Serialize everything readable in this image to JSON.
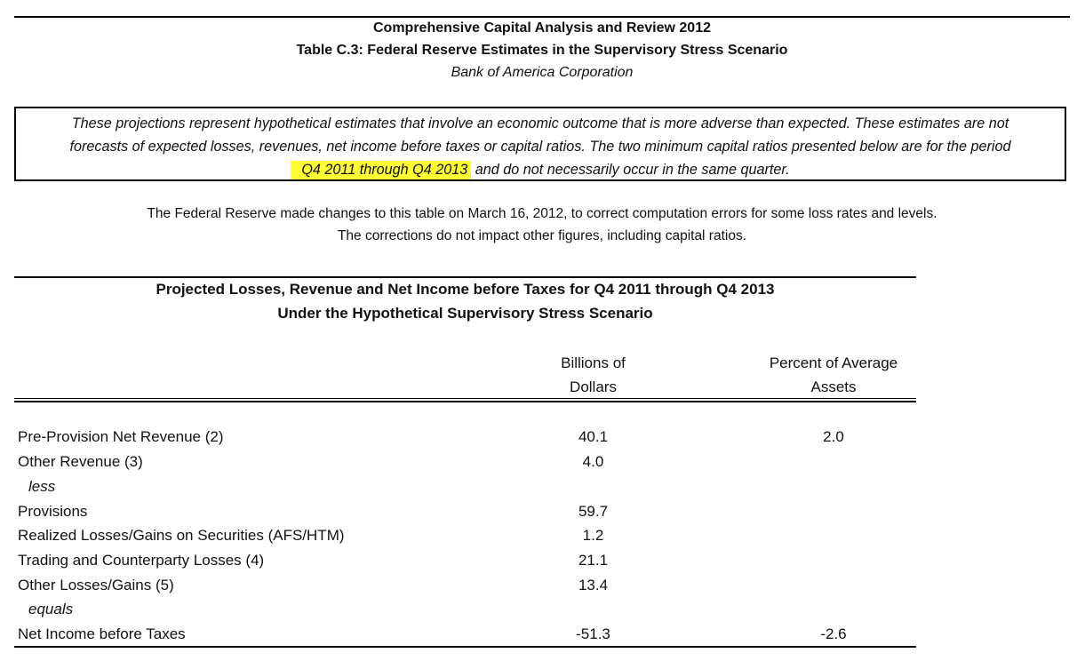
{
  "header": {
    "title": "Comprehensive Capital Analysis and Review 2012",
    "table_title": "Table C.3: Federal Reserve Estimates in the Supervisory Stress Scenario",
    "institution": "Bank of America Corporation"
  },
  "disclaimer": {
    "line1": "These projections represent hypothetical estimates that involve an economic outcome that is more adverse than expected.  These estimates are not",
    "line2": "forecasts of expected losses, revenues, net income before taxes or capital ratios.  The two minimum capital ratios presented below are for the period",
    "highlight": "Q4 2011 through Q4 2013",
    "line3_rest": " and do not necessarily occur in the same quarter.",
    "highlight_color": "#ffff33"
  },
  "note": {
    "line1": "The Federal Reserve made changes to this table on March 16, 2012, to correct computation errors for some loss rates and levels.",
    "line2": "The corrections do not impact other figures, including capital ratios."
  },
  "table": {
    "title_line1": "Projected Losses, Revenue and Net Income before Taxes for Q4 2011 through Q4 2013",
    "title_line2": "Under the Hypothetical Supervisory Stress Scenario",
    "col1_line1": "Billions of",
    "col1_line2": "Dollars",
    "col2_line1": "Percent of Average",
    "col2_line2": "Assets",
    "rows": [
      {
        "label": "Pre-Provision Net Revenue (2)",
        "billions": "40.1",
        "percent": "2.0"
      },
      {
        "label": "Other Revenue (3)",
        "billions": "4.0",
        "percent": ""
      },
      {
        "label": "less",
        "billions": "",
        "percent": ""
      },
      {
        "label": "Provisions",
        "billions": "59.7",
        "percent": ""
      },
      {
        "label": "Realized Losses/Gains on Securities (AFS/HTM)",
        "billions": "1.2",
        "percent": ""
      },
      {
        "label": "Trading and Counterparty Losses (4)",
        "billions": "21.1",
        "percent": ""
      },
      {
        "label": "Other Losses/Gains (5)",
        "billions": "13.4",
        "percent": ""
      },
      {
        "label": "equals",
        "billions": "",
        "percent": ""
      },
      {
        "label": "Net Income before Taxes",
        "billions": "-51.3",
        "percent": "-2.6"
      }
    ]
  }
}
